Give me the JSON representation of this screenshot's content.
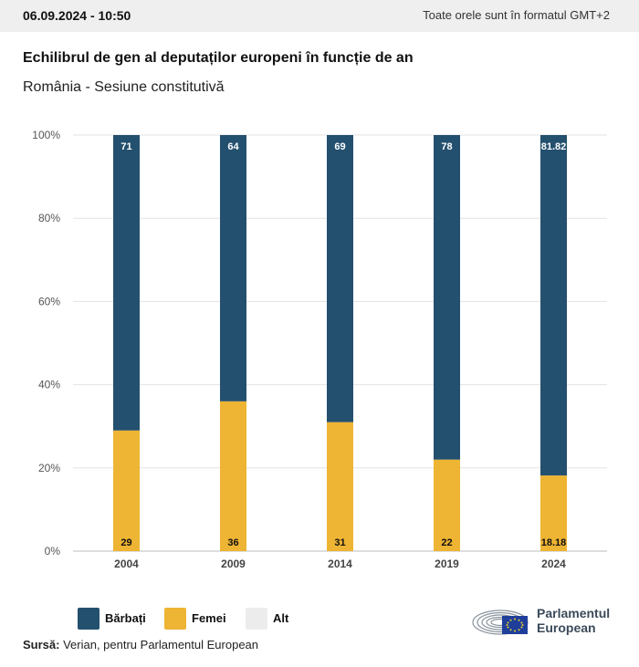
{
  "header": {
    "datetime": "06.09.2024 - 10:50",
    "timezone_note": "Toate orele sunt în formatul GMT+2"
  },
  "title": "Echilibrul de gen al deputaților europeni în funcție de an",
  "subtitle": "România - Sesiune constitutivă",
  "colors": {
    "men": "#24506f",
    "women": "#eeb433",
    "other": "#ececec",
    "grid": "#e3e3e3"
  },
  "chart_data": {
    "type": "bar",
    "stacked": true,
    "categories": [
      "2004",
      "2009",
      "2014",
      "2019",
      "2024"
    ],
    "series": [
      {
        "name": "Bărbați",
        "values": [
          71,
          64,
          69,
          78,
          81.82
        ]
      },
      {
        "name": "Femei",
        "values": [
          29,
          36,
          31,
          22,
          18.18
        ]
      },
      {
        "name": "Alt",
        "values": [
          0,
          0,
          0,
          0,
          0
        ]
      }
    ],
    "y_ticks": [
      "0%",
      "20%",
      "40%",
      "60%",
      "80%",
      "100%"
    ],
    "ylim": [
      0,
      100
    ],
    "grid": true,
    "legend_position": "bottom-left"
  },
  "legend": [
    {
      "label": "Bărbați",
      "color": "#24506f"
    },
    {
      "label": "Femei",
      "color": "#eeb433"
    },
    {
      "label": "Alt",
      "color": "#ececec"
    }
  ],
  "source": {
    "label": "Sursă:",
    "text": "Verian, pentru Parlamentul European"
  },
  "logo": {
    "line1": "Parlamentul",
    "line2": "European"
  }
}
